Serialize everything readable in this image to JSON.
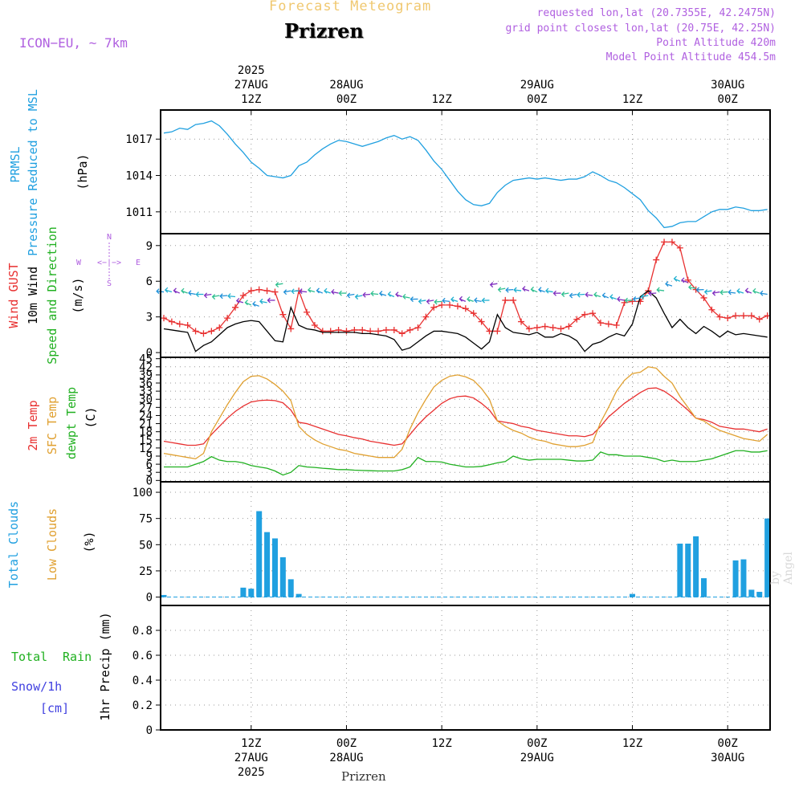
{
  "header": {
    "title_top": "Forecast Meteogram",
    "location": "Prizren",
    "model": "ICON−EU, ~ 7km",
    "info": [
      "requested lon,lat (20.7355E, 42.2475N)",
      "grid point closest lon,lat (20.75E, 42.25N)",
      "Point Altitude 420m",
      "Model Point Altitude 454.5m"
    ],
    "footer": "Prizren",
    "credit": "by Angel"
  },
  "time_axis": {
    "top_labels": [
      {
        "h": 12,
        "lines": [
          "2025",
          "27AUG",
          "12Z"
        ]
      },
      {
        "h": 24,
        "lines": [
          "28AUG",
          "00Z"
        ]
      },
      {
        "h": 36,
        "lines": [
          "12Z"
        ]
      },
      {
        "h": 48,
        "lines": [
          "29AUG",
          "00Z"
        ]
      },
      {
        "h": 60,
        "lines": [
          "12Z"
        ]
      },
      {
        "h": 72,
        "lines": [
          "30AUG",
          "00Z"
        ]
      }
    ],
    "bottom_labels": [
      {
        "h": 12,
        "lines": [
          "12Z",
          "27AUG",
          "2025"
        ]
      },
      {
        "h": 24,
        "lines": [
          "00Z",
          "28AUG"
        ]
      },
      {
        "h": 36,
        "lines": [
          "12Z"
        ]
      },
      {
        "h": 48,
        "lines": [
          "00Z",
          "29AUG"
        ]
      },
      {
        "h": 60,
        "lines": [
          "12Z"
        ]
      },
      {
        "h": 72,
        "lines": [
          "00Z",
          "30AUG"
        ]
      }
    ]
  },
  "panel_labels": {
    "pressure": [
      {
        "text": "PRMSL",
        "color": "#20a0e0"
      },
      {
        "text": "Pressure Reduced to MSL",
        "color": "#20a0e0"
      },
      {
        "text": "(hPa)",
        "color": "#000000"
      }
    ],
    "wind": [
      {
        "text": "Wind GUST",
        "color": "#e83030"
      },
      {
        "text": "10m Wind",
        "color": "#000000"
      },
      {
        "text": "Speed and Direction",
        "color": "#20b020"
      },
      {
        "text": "(m/s)",
        "color": "#000000"
      }
    ],
    "compass": {
      "n": "N",
      "s": "S",
      "w": "W",
      "e": "E",
      "arrow": "<−|−>"
    },
    "temp": [
      {
        "text": "2m Temp",
        "color": "#e83030"
      },
      {
        "text": "SFC Temp",
        "color": "#e0a030"
      },
      {
        "text": "dewpt Temp",
        "color": "#20b020"
      },
      {
        "text": "(C)",
        "color": "#000000"
      }
    ],
    "clouds": [
      {
        "text": "Total Clouds",
        "color": "#20a0e0"
      },
      {
        "text": "Low Clouds",
        "color": "#e0a030"
      },
      {
        "text": "(%)",
        "color": "#000000"
      }
    ],
    "precip": {
      "total": "Total",
      "rain": "Rain",
      "snow": "Snow/1h",
      "cm": "[cm]",
      "axis": "1hr Precip (mm)"
    }
  },
  "chart_data": [
    {
      "type": "line",
      "name": "pressure",
      "x_start_hour": 1,
      "x_range": [
        1,
        77
      ],
      "ylim": [
        1009.2,
        1019.4
      ],
      "yticks": [
        1011,
        1014,
        1017
      ],
      "series": [
        {
          "color": "#20a0e0",
          "values": [
            1017.5,
            1017.6,
            1017.9,
            1017.8,
            1018.2,
            1018.3,
            1018.5,
            1018.1,
            1017.4,
            1016.6,
            1015.9,
            1015.1,
            1014.6,
            1014.0,
            1013.9,
            1013.8,
            1014.0,
            1014.8,
            1015.1,
            1015.7,
            1016.2,
            1016.6,
            1016.9,
            1016.8,
            1016.6,
            1016.4,
            1016.6,
            1016.8,
            1017.1,
            1017.3,
            1017.0,
            1017.2,
            1016.9,
            1016.1,
            1015.2,
            1014.5,
            1013.6,
            1012.7,
            1012.0,
            1011.6,
            1011.5,
            1011.7,
            1012.6,
            1013.2,
            1013.6,
            1013.7,
            1013.8,
            1013.7,
            1013.8,
            1013.7,
            1013.6,
            1013.7,
            1013.7,
            1013.9,
            1014.3,
            1014.0,
            1013.6,
            1013.4,
            1013.0,
            1012.5,
            1012.0,
            1011.1,
            1010.5,
            1009.7,
            1009.8,
            1010.1,
            1010.2,
            1010.2,
            1010.6,
            1011.0,
            1011.2,
            1011.2,
            1011.4,
            1011.3,
            1011.1,
            1011.1,
            1011.2
          ]
        }
      ]
    },
    {
      "type": "line",
      "name": "wind",
      "x_start_hour": 1,
      "x_range": [
        1,
        77
      ],
      "ylim": [
        -0.4,
        10.0
      ],
      "yticks": [
        0,
        3,
        6,
        9
      ],
      "series": [
        {
          "name": "Wind GUST",
          "color": "#e83030",
          "marker": "+",
          "values": [
            2.9,
            2.6,
            2.4,
            2.3,
            1.8,
            1.6,
            1.8,
            2.1,
            2.9,
            3.8,
            4.8,
            5.2,
            5.3,
            5.2,
            5.1,
            3.2,
            2.0,
            5.2,
            3.4,
            2.3,
            1.8,
            1.8,
            1.9,
            1.8,
            1.9,
            1.9,
            1.8,
            1.8,
            1.9,
            1.9,
            1.6,
            1.9,
            2.1,
            3.0,
            3.8,
            4.0,
            4.0,
            3.9,
            3.7,
            3.3,
            2.6,
            1.8,
            1.8,
            4.4,
            4.4,
            2.6,
            2.0,
            2.1,
            2.2,
            2.1,
            2.0,
            2.2,
            2.8,
            3.2,
            3.3,
            2.5,
            2.4,
            2.3,
            4.2,
            4.3,
            4.3,
            5.2,
            7.8,
            9.3,
            9.3,
            8.8,
            6.1,
            5.3,
            4.6,
            3.6,
            3.0,
            2.9,
            3.1,
            3.1,
            3.1,
            2.8,
            3.1
          ]
        },
        {
          "name": "10m Wind",
          "color": "#000000",
          "values": [
            2.0,
            1.9,
            1.8,
            1.7,
            0.1,
            0.6,
            0.9,
            1.5,
            2.1,
            2.4,
            2.6,
            2.7,
            2.6,
            1.8,
            1.0,
            0.9,
            3.8,
            2.3,
            2.0,
            1.9,
            1.7,
            1.7,
            1.7,
            1.7,
            1.7,
            1.6,
            1.6,
            1.5,
            1.4,
            1.1,
            0.2,
            0.4,
            0.9,
            1.4,
            1.8,
            1.8,
            1.7,
            1.6,
            1.3,
            0.8,
            0.3,
            0.9,
            3.2,
            2.1,
            1.7,
            1.6,
            1.5,
            1.7,
            1.3,
            1.3,
            1.6,
            1.4,
            1.0,
            0.1,
            0.7,
            0.9,
            1.3,
            1.6,
            1.4,
            2.4,
            4.7,
            5.2,
            4.6,
            3.3,
            2.1,
            2.8,
            2.1,
            1.6,
            2.2,
            1.8,
            1.3,
            1.8,
            1.5,
            1.6,
            1.5,
            1.4,
            1.3
          ]
        },
        {
          "name": "direction arrows",
          "color": "#20b0d0",
          "values": [
            5.1,
            5.1,
            5.0,
            5.0,
            4.9,
            4.9,
            4.9,
            4.8,
            4.8,
            4.7,
            4.2,
            4.0,
            3.9,
            4.2,
            4.4,
            5.8,
            5.2,
            5.2,
            5.1,
            5.1,
            5.0,
            5.0,
            5.0,
            5.0,
            4.9,
            4.8,
            4.9,
            4.9,
            4.8,
            4.7,
            4.7,
            4.6,
            4.5,
            4.4,
            4.4,
            4.3,
            4.3,
            4.3,
            4.3,
            4.3,
            4.3,
            4.4,
            5.8,
            5.4,
            5.3,
            5.2,
            5.2,
            5.1,
            5.1,
            5.1,
            5.0,
            5.0,
            4.9,
            4.9,
            4.8,
            4.7,
            4.6,
            4.5,
            4.4,
            4.4,
            4.6,
            4.8,
            5.0,
            5.2,
            5.6,
            6.0,
            5.9,
            5.4,
            5.3,
            5.2,
            5.1,
            5.1,
            5.0,
            5.0,
            5.0,
            5.0,
            4.9
          ]
        }
      ]
    },
    {
      "type": "line",
      "name": "temperature",
      "x_start_hour": 1,
      "x_range": [
        1,
        77
      ],
      "ylim": [
        -0.5,
        45.5
      ],
      "yticks": [
        0,
        3,
        6,
        9,
        12,
        15,
        18,
        21,
        24,
        27,
        30,
        33,
        36,
        39,
        42,
        45
      ],
      "series": [
        {
          "name": "2m Temp",
          "color": "#e83030",
          "values": [
            14.5,
            14.0,
            13.5,
            13.0,
            13.0,
            13.5,
            17.0,
            20.0,
            23.0,
            25.5,
            27.5,
            29.0,
            29.5,
            29.7,
            29.5,
            28.7,
            26.0,
            21.5,
            21.0,
            20.0,
            19.0,
            18.0,
            17.0,
            16.5,
            15.8,
            15.3,
            14.5,
            14.0,
            13.5,
            13.0,
            13.5,
            17.0,
            20.5,
            23.5,
            26.0,
            28.5,
            30.2,
            31.0,
            31.2,
            30.5,
            28.5,
            26.0,
            22.0,
            21.5,
            21.0,
            20.0,
            19.5,
            18.5,
            18.0,
            17.5,
            17.0,
            16.5,
            16.5,
            16.2,
            17.0,
            20.0,
            23.5,
            26.0,
            28.5,
            30.5,
            32.5,
            34.0,
            34.2,
            33.0,
            31.0,
            28.5,
            26.0,
            23.0,
            22.5,
            21.5,
            20.0,
            19.5,
            19.0,
            19.0,
            18.5,
            18.0,
            19.0
          ]
        },
        {
          "name": "SFC Temp",
          "color": "#e0a030",
          "values": [
            10.0,
            9.5,
            9.0,
            8.5,
            8.0,
            10.0,
            18.0,
            23.0,
            28.0,
            32.5,
            36.5,
            38.5,
            38.7,
            37.5,
            35.5,
            33.0,
            29.5,
            20.0,
            17.0,
            15.0,
            13.5,
            12.5,
            11.5,
            11.0,
            10.0,
            9.5,
            9.0,
            8.5,
            8.5,
            8.5,
            11.5,
            19.0,
            25.0,
            30.0,
            34.5,
            37.0,
            38.5,
            39.0,
            38.3,
            37.0,
            34.0,
            30.0,
            22.0,
            20.0,
            18.5,
            17.5,
            16.0,
            15.0,
            14.5,
            13.5,
            13.0,
            12.5,
            12.5,
            13.0,
            14.0,
            21.5,
            27.0,
            33.0,
            37.0,
            39.5,
            40.0,
            42.0,
            41.5,
            38.5,
            36.0,
            31.0,
            27.0,
            23.0,
            22.0,
            20.0,
            18.5,
            17.5,
            16.5,
            15.5,
            15.0,
            14.5,
            17.0
          ]
        },
        {
          "name": "dewpt Temp",
          "color": "#20b020",
          "values": [
            5.0,
            5.0,
            5.0,
            5.0,
            6.0,
            7.0,
            8.8,
            7.5,
            7.0,
            7.0,
            6.5,
            5.5,
            5.0,
            4.5,
            3.5,
            2.0,
            3.0,
            5.5,
            5.0,
            4.8,
            4.5,
            4.3,
            4.0,
            4.0,
            3.8,
            3.7,
            3.6,
            3.5,
            3.5,
            3.5,
            4.0,
            5.0,
            8.5,
            7.0,
            7.0,
            6.8,
            6.0,
            5.5,
            5.0,
            5.0,
            5.2,
            5.8,
            6.5,
            7.0,
            9.0,
            8.0,
            7.5,
            7.8,
            7.8,
            7.8,
            7.8,
            7.5,
            7.2,
            7.2,
            7.5,
            10.5,
            9.5,
            9.5,
            9.0,
            9.0,
            9.0,
            8.5,
            8.0,
            7.0,
            7.5,
            7.0,
            7.0,
            7.0,
            7.5,
            8.0,
            9.0,
            10.0,
            11.0,
            11.0,
            10.5,
            10.5,
            11.0
          ]
        }
      ]
    },
    {
      "type": "bar",
      "name": "clouds",
      "ylim": [
        -8,
        110
      ],
      "yticks": [
        0,
        25,
        50,
        75,
        100
      ],
      "series": [
        {
          "name": "Total Clouds",
          "color": "#20a0e0",
          "bars": [
            {
              "h": 1,
              "v": 2
            },
            {
              "h": 11,
              "v": 9
            },
            {
              "h": 12,
              "v": 8
            },
            {
              "h": 13,
              "v": 82
            },
            {
              "h": 14,
              "v": 62
            },
            {
              "h": 15,
              "v": 56
            },
            {
              "h": 16,
              "v": 38
            },
            {
              "h": 17,
              "v": 17
            },
            {
              "h": 18,
              "v": 3
            },
            {
              "h": 60,
              "v": 3
            },
            {
              "h": 66,
              "v": 51
            },
            {
              "h": 67,
              "v": 51
            },
            {
              "h": 68,
              "v": 58
            },
            {
              "h": 69,
              "v": 18
            },
            {
              "h": 73,
              "v": 35
            },
            {
              "h": 74,
              "v": 36
            },
            {
              "h": 75,
              "v": 7
            },
            {
              "h": 76,
              "v": 5
            },
            {
              "h": 77,
              "v": 75
            }
          ]
        },
        {
          "name": "Low Clouds",
          "color": "#e0a030",
          "bars": []
        }
      ]
    },
    {
      "type": "line",
      "name": "precipitation",
      "ylim": [
        0,
        1.0
      ],
      "yticks": [
        0,
        0.2,
        0.4,
        0.6,
        0.8
      ],
      "series": [
        {
          "name": "Total",
          "color": "#000000",
          "values": [
            0,
            0
          ]
        }
      ]
    }
  ]
}
